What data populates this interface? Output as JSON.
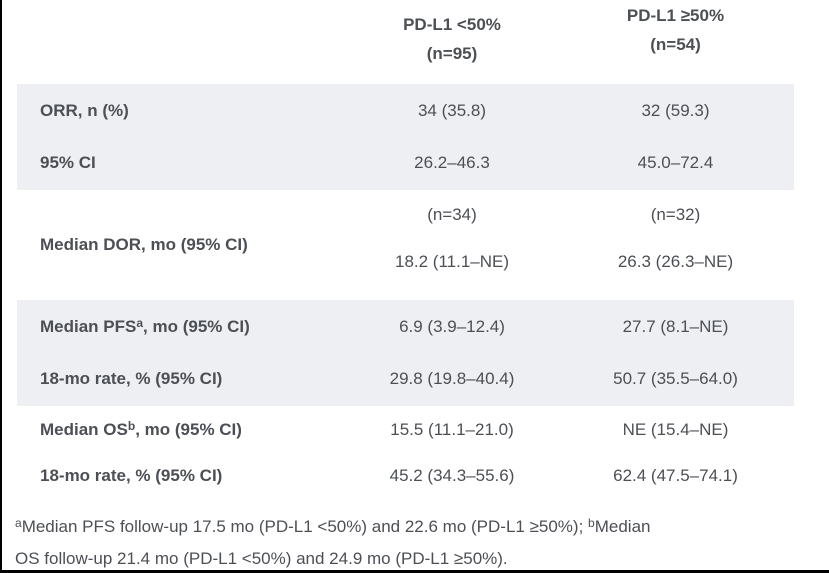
{
  "header": {
    "col1": {
      "line1": "PD-L1 <50%",
      "line2": "(n=95)"
    },
    "col2": {
      "line1": "PD-L1 ≥50%",
      "line2": "(n=54)"
    }
  },
  "rows": {
    "orr": {
      "label": "ORR, n (%)",
      "col1": "34 (35.8)",
      "col2": "32 (59.3)"
    },
    "ci": {
      "label": "95% CI",
      "col1": "26.2–46.3",
      "col2": "45.0–72.4"
    },
    "dor": {
      "label": "Median DOR, mo (95% CI)",
      "col1_n": "(n=34)",
      "col1_value": "18.2 (11.1–NE)",
      "col2_n": "(n=32)",
      "col2_value": "26.3 (26.3–NE)"
    },
    "pfs": {
      "label_pre": "Median PFS",
      "label_sup": "a",
      "label_post": ", mo (95% CI)",
      "col1": "6.9 (3.9–12.4)",
      "col2": "27.7 (8.1–NE)"
    },
    "pfs_rate": {
      "label": "18-mo rate, % (95% CI)",
      "col1": "29.8 (19.8–40.4)",
      "col2": "50.7 (35.5–64.0)"
    },
    "os": {
      "label_pre": "Median OS",
      "label_sup": "b",
      "label_post": ", mo (95% CI)",
      "col1": "15.5 (11.1–21.0)",
      "col2": "NE (15.4–NE)"
    },
    "os_rate": {
      "label": "18-mo rate, % (95% CI)",
      "col1": "45.2 (34.3–55.6)",
      "col2": "62.4 (47.5–74.1)"
    }
  },
  "footnote": {
    "sup_a": "a",
    "line1_text": "Median PFS follow-up 17.5 mo (PD-L1 <50%) and 22.6 mo (PD-L1 ≥50%); ",
    "sup_b": "b",
    "line1_tail": "Median",
    "line2": "OS follow-up 21.4 mo (PD-L1 <50%) and 24.9 mo (PD-L1 ≥50%)."
  },
  "colors": {
    "band_shade": "#edeff3",
    "text": "#4c4f54",
    "frame_line": "#000000"
  }
}
